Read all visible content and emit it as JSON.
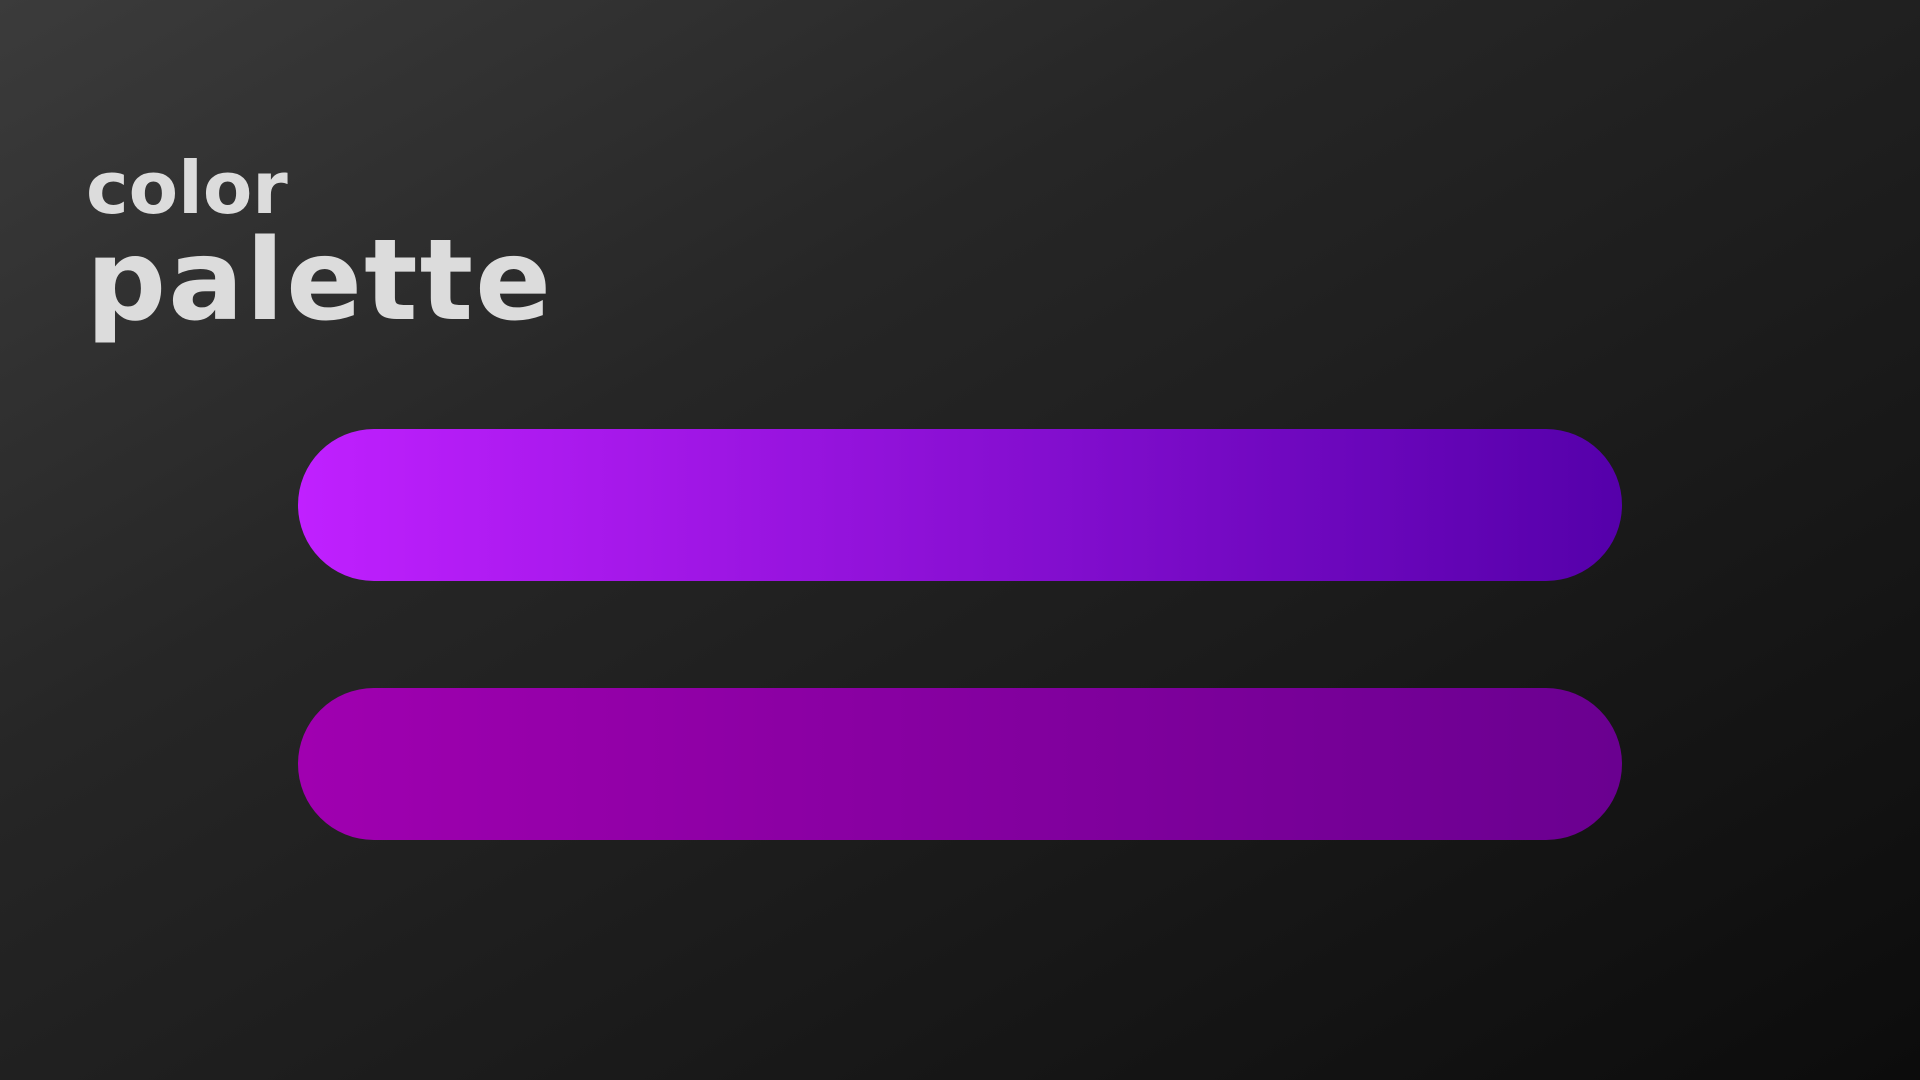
{
  "title": {
    "line1": "color",
    "line2": "palette"
  },
  "swatches": [
    {
      "gradient_from": "#c020ff",
      "gradient_to": "#5500aa"
    },
    {
      "gradient_from": "#a000b0",
      "gradient_to": "#6a0090"
    }
  ],
  "colors": {
    "title_text": "#dcdcdc",
    "background_light": "#3b3b3b",
    "background_dark": "#0c0c0c"
  }
}
